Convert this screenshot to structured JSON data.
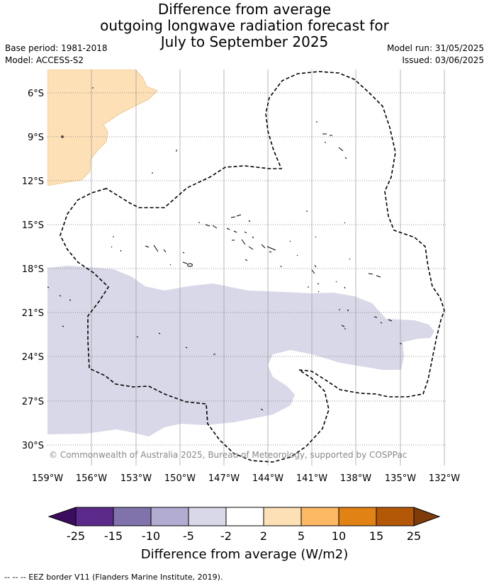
{
  "title": {
    "line1": "Difference from average",
    "line2": "outgoing longwave radiation forecast for",
    "line3": "July to September 2025"
  },
  "meta": {
    "base_period": "Base period: 1981-2018",
    "model": "Model: ACCESS-S2",
    "model_run": "Model run: 31/05/2025",
    "issued": "Issued: 03/06/2025"
  },
  "map": {
    "lat_ticks": [
      "6°S",
      "9°S",
      "12°S",
      "15°S",
      "18°S",
      "21°S",
      "24°S",
      "27°S",
      "30°S"
    ],
    "lon_ticks": [
      "159°W",
      "156°W",
      "153°W",
      "150°W",
      "147°W",
      "144°W",
      "141°W",
      "138°W",
      "135°W",
      "132°W"
    ],
    "copyright": "© Commonwealth of Australia 2025, Bureau of Meteorology, supported by COSPPac",
    "colors": {
      "positive_2_5": "#fde0b6",
      "negative_2_5": "#d8d8e8",
      "grid": "#999999",
      "eez_border": "#000000"
    }
  },
  "colorbar": {
    "ticks": [
      "-25",
      "-15",
      "-10",
      "-5",
      "-2",
      "2",
      "5",
      "10",
      "15",
      "25"
    ],
    "label": "Difference from average (W/m2)",
    "colors": [
      "#3c0d5e",
      "#5b2a8a",
      "#8073ac",
      "#b2abd2",
      "#d8d8e8",
      "#ffffff",
      "#fde0b6",
      "#fdb863",
      "#e08214",
      "#b35806",
      "#7f3b08"
    ]
  },
  "footer": {
    "legend": "--  --  -- EEZ border V11 (Flanders Marine Institute, 2019)."
  }
}
